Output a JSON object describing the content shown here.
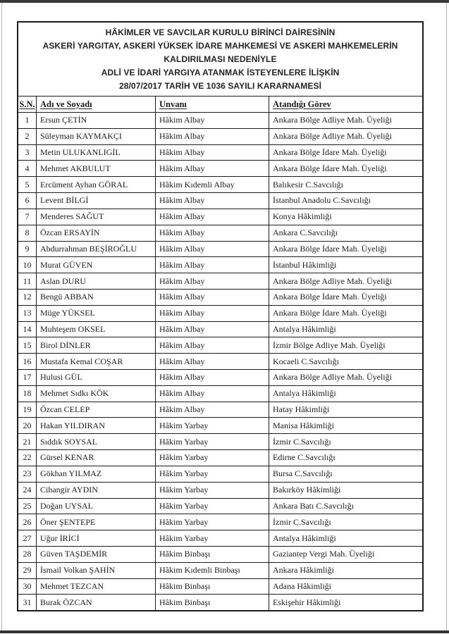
{
  "page": {
    "background": "#ffffff",
    "edge_bar_color": "#3a3a3c",
    "edge_line_color": "#b3b3b3",
    "border_color": "#1b1b1b",
    "text_color": "#1b1b1b"
  },
  "title_block": {
    "lines": [
      "HÂKİMLER VE SAVCILAR KURULU BİRİNCİ DAİRESİNİN",
      "ASKERİ YARGITAY, ASKERİ YÜKSEK İDARE MAHKEMESİ VE ASKERİ MAHKEMELERİN",
      "KALDIRILMASI NEDENİYLE",
      "ADLİ VE İDARİ YARGIYA ATANMAK İSTEYENLERE İLİŞKİN",
      "28/07/2017 TARİH VE 1036 SAYILI KARARNAMESİ"
    ]
  },
  "table": {
    "columns": [
      {
        "key": "sn",
        "label": "S.N."
      },
      {
        "key": "name",
        "label": "Adı ve Soyadı"
      },
      {
        "key": "title",
        "label": "Unvanı"
      },
      {
        "key": "assignment",
        "label": "Atandığı Görev"
      }
    ],
    "rows": [
      {
        "sn": "1",
        "name": "Ersun ÇETİN",
        "title": "Hâkim Albay",
        "assignment": "Ankara Bölge Adliye Mah. Üyeliği"
      },
      {
        "sn": "2",
        "name": "Süleyman KAYMAKÇI",
        "title": "Hâkim Albay",
        "assignment": "Ankara Bölge Adliye Mah. Üyeliği"
      },
      {
        "sn": "3",
        "name": "Metin ULUKANLIGİL",
        "title": "Hâkim Albay",
        "assignment": "Ankara Bölge İdare Mah. Üyeliği"
      },
      {
        "sn": "4",
        "name": "Mehmet AKBULUT",
        "title": "Hâkim Albay",
        "assignment": "Ankara Bölge İdare Mah. Üyeliği"
      },
      {
        "sn": "5",
        "name": "Ercüment Ayhan GÖRAL",
        "title": "Hâkim Kıdemli Albay",
        "assignment": "Balıkesir C.Savcılığı"
      },
      {
        "sn": "6",
        "name": "Levent BİLGİ",
        "title": "Hâkim Albay",
        "assignment": "İstanbul Anadolu C.Savcılığı"
      },
      {
        "sn": "7",
        "name": "Menderes SAĞUT",
        "title": "Hâkim Albay",
        "assignment": "Konya Hâkimliği"
      },
      {
        "sn": "8",
        "name": "Özcan ERSAYİN",
        "title": "Hâkim Albay",
        "assignment": "Ankara C.Savcılığı"
      },
      {
        "sn": "9",
        "name": "Abdurrahman BEŞİROĞLU",
        "title": "Hâkim Albay",
        "assignment": "Ankara Bölge İdare Mah. Üyeliği"
      },
      {
        "sn": "10",
        "name": "Murat GÜVEN",
        "title": "Hâkim Albay",
        "assignment": "İstanbul Hâkimliği"
      },
      {
        "sn": "11",
        "name": "Aslan DURU",
        "title": "Hâkim Albay",
        "assignment": "Ankara Bölge Adliye Mah. Üyeliği"
      },
      {
        "sn": "12",
        "name": "Bengü ABBAN",
        "title": "Hâkim Albay",
        "assignment": "Ankara Bölge İdare Mah. Üyeliği"
      },
      {
        "sn": "13",
        "name": "Müge YÜKSEL",
        "title": "Hâkim Albay",
        "assignment": "Ankara Bölge İdare Mah. Üyeliği"
      },
      {
        "sn": "14",
        "name": "Muhteşem OKSEL",
        "title": "Hâkim Albay",
        "assignment": "Antalya Hâkimliği"
      },
      {
        "sn": "15",
        "name": "Birol DİNLER",
        "title": "Hâkim Albay",
        "assignment": "İzmir Bölge Adliye Mah. Üyeliği"
      },
      {
        "sn": "16",
        "name": "Mustafa Kemal COŞAR",
        "title": "Hâkim Albay",
        "assignment": "Kocaeli C.Savcılığı"
      },
      {
        "sn": "17",
        "name": "Hulusi GÜL",
        "title": "Hâkim Albay",
        "assignment": "Ankara Bölge Adliye Mah. Üyeliği"
      },
      {
        "sn": "18",
        "name": "Mehmet Sıdkı KÖK",
        "title": "Hâkim Albay",
        "assignment": "Antalya Hâkimliği"
      },
      {
        "sn": "19",
        "name": "Özcan CELEP",
        "title": "Hâkim Albay",
        "assignment": "Hatay Hâkimliği"
      },
      {
        "sn": "20",
        "name": "Hakan YILDIRAN",
        "title": "Hâkim Yarbay",
        "assignment": "Manisa Hâkimliği"
      },
      {
        "sn": "21",
        "name": "Sıddık SOYSAL",
        "title": "Hâkim Yarbay",
        "assignment": "İzmir C.Savcılığı"
      },
      {
        "sn": "22",
        "name": "Gürsel KENAR",
        "title": "Hâkim Yarbay",
        "assignment": "Edirne C.Savcılığı"
      },
      {
        "sn": "23",
        "name": "Gökhan YILMAZ",
        "title": "Hâkim Yarbay",
        "assignment": "Bursa C.Savcılığı"
      },
      {
        "sn": "24",
        "name": "Cihangir AYDIN",
        "title": "Hâkim Yarbay",
        "assignment": "Bakırköy Hâkimliği"
      },
      {
        "sn": "25",
        "name": "Doğan UYSAL",
        "title": "Hâkim Yarbay",
        "assignment": "Ankara Batı C.Savcılığı"
      },
      {
        "sn": "26",
        "name": "Öner ŞENTEPE",
        "title": "Hâkim Yarbay",
        "assignment": "İzmir C.Savcılığı"
      },
      {
        "sn": "27",
        "name": "Uğur İRİCİ",
        "title": "Hâkim Yarbay",
        "assignment": "Antalya Hâkimliği"
      },
      {
        "sn": "28",
        "name": "Güven TAŞDEMİR",
        "title": "Hâkim Binbaşı",
        "assignment": "Gaziantep Vergi Mah. Üyeliği"
      },
      {
        "sn": "29",
        "name": "İsmail Volkan ŞAHİN",
        "title": "Hâkim Kıdemli Binbaşı",
        "assignment": "Ankara Hâkimliği"
      },
      {
        "sn": "30",
        "name": "Mehmet TEZCAN",
        "title": "Hâkim Binbaşı",
        "assignment": "Adana Hâkimliği"
      },
      {
        "sn": "31",
        "name": "Burak ÖZCAN",
        "title": "Hâkim Binbaşı",
        "assignment": "Eskişehir Hâkimliği"
      }
    ]
  }
}
